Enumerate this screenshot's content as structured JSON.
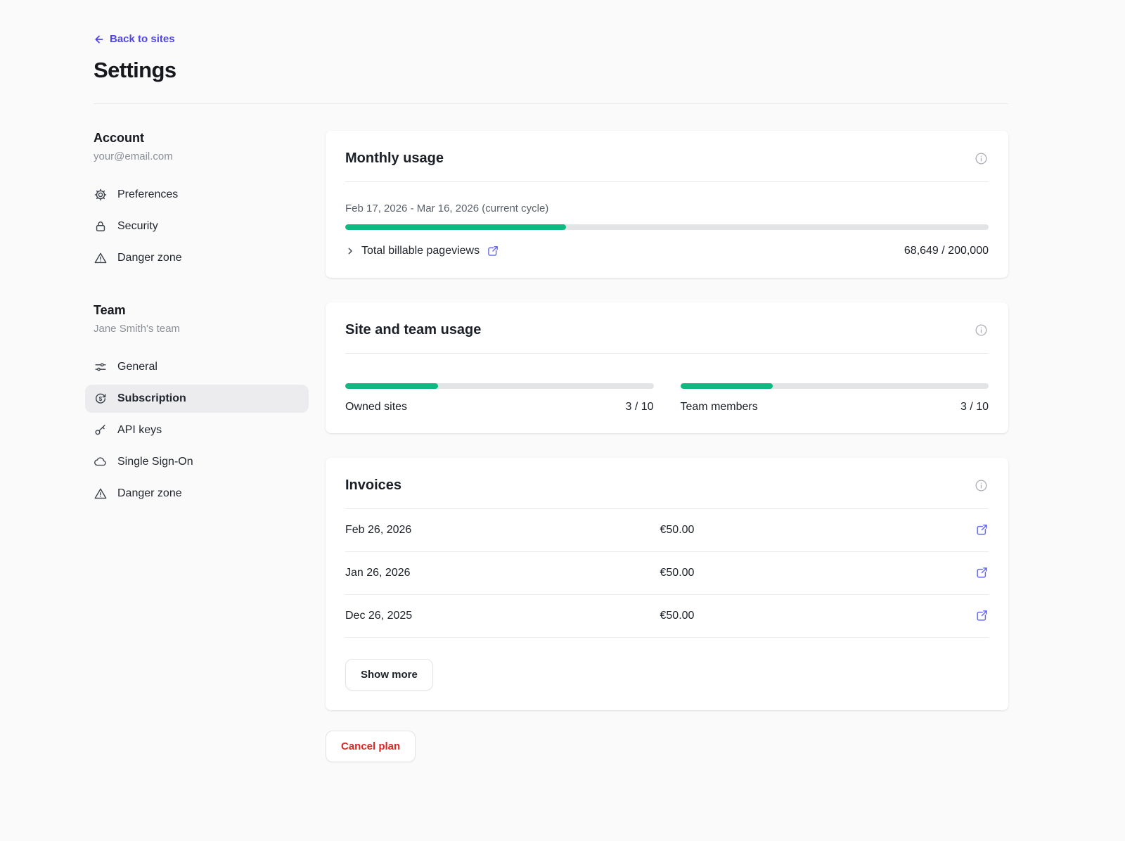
{
  "header": {
    "back_label": "Back to sites",
    "title": "Settings"
  },
  "sidebar": {
    "account": {
      "heading": "Account",
      "subheading": "your@email.com",
      "items": [
        {
          "label": "Preferences",
          "icon": "gear-icon"
        },
        {
          "label": "Security",
          "icon": "lock-icon"
        },
        {
          "label": "Danger zone",
          "icon": "warning-icon"
        }
      ]
    },
    "team": {
      "heading": "Team",
      "subheading": "Jane Smith's team",
      "items": [
        {
          "label": "General",
          "icon": "sliders-icon"
        },
        {
          "label": "Subscription",
          "icon": "dollar-refresh-icon",
          "selected": true
        },
        {
          "label": "API keys",
          "icon": "key-icon"
        },
        {
          "label": "Single Sign-On",
          "icon": "cloud-icon"
        },
        {
          "label": "Danger zone",
          "icon": "warning-icon"
        }
      ]
    }
  },
  "monthly_usage": {
    "title": "Monthly usage",
    "cycle_label": "Feb 17, 2026 - Mar 16, 2026 (current cycle)",
    "progress_pct": 34.3,
    "row_label": "Total billable pageviews",
    "row_value": "68,649 / 200,000"
  },
  "site_team_usage": {
    "title": "Site and team usage",
    "meters": [
      {
        "label": "Owned sites",
        "value": "3 / 10",
        "pct": 30
      },
      {
        "label": "Team members",
        "value": "3 / 10",
        "pct": 30
      }
    ]
  },
  "invoices": {
    "title": "Invoices",
    "rows": [
      {
        "date": "Feb 26, 2026",
        "amount": "€50.00"
      },
      {
        "date": "Jan 26, 2026",
        "amount": "€50.00"
      },
      {
        "date": "Dec 26, 2025",
        "amount": "€50.00"
      }
    ],
    "show_more_label": "Show more"
  },
  "actions": {
    "cancel_label": "Cancel plan"
  },
  "colors": {
    "accent_green": "#10b981",
    "link_indigo": "#4f46e5",
    "icon_indigo": "#6569ea",
    "danger_red": "#dc2626"
  }
}
